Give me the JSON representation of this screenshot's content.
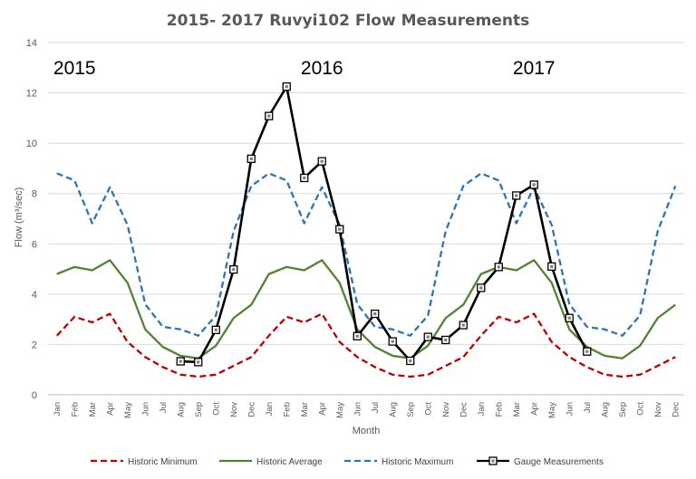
{
  "chart_data": {
    "type": "line",
    "title": "2015- 2017 Ruvyi102 Flow Measurements",
    "xlabel": "Month",
    "ylabel": "Flow (m³/sec)",
    "ylim": [
      0,
      14
    ],
    "yticks": [
      "0",
      "2",
      "4",
      "6",
      "8",
      "10",
      "12",
      "14"
    ],
    "grid": "horizontal",
    "legend_position": "bottom",
    "categories": [
      "Jan",
      "Feb",
      "Mar",
      "Apr",
      "May",
      "Jun",
      "Jul",
      "Aug",
      "Sep",
      "Oct",
      "Nov",
      "Dec",
      "Jan",
      "Feb",
      "Mar",
      "Apr",
      "May",
      "Jun",
      "Jul",
      "Aug",
      "Sep",
      "Oct",
      "Nov",
      "Dec",
      "Jan",
      "Feb",
      "Mar",
      "Apr",
      "May",
      "Jun",
      "Jul",
      "Aug",
      "Sep",
      "Oct",
      "Nov",
      "Dec"
    ],
    "year_labels": [
      {
        "text": "2015",
        "category_index": 1
      },
      {
        "text": "2016",
        "category_index": 15
      },
      {
        "text": "2017",
        "category_index": 27
      }
    ],
    "series": [
      {
        "name": "Historic Minimum",
        "color": "#C00000",
        "dash": "dash",
        "values": [
          2.35,
          3.1,
          2.88,
          3.22,
          2.1,
          1.5,
          1.1,
          0.8,
          0.72,
          0.8,
          1.15,
          1.5,
          2.35,
          3.1,
          2.88,
          3.22,
          2.1,
          1.5,
          1.1,
          0.8,
          0.72,
          0.8,
          1.15,
          1.5,
          2.35,
          3.1,
          2.88,
          3.22,
          2.1,
          1.5,
          1.1,
          0.8,
          0.72,
          0.8,
          1.15,
          1.5
        ]
      },
      {
        "name": "Historic Average",
        "color": "#548235",
        "dash": "solid",
        "values": [
          4.8,
          5.08,
          4.95,
          5.35,
          4.45,
          2.6,
          1.9,
          1.55,
          1.45,
          1.95,
          3.05,
          3.58,
          4.8,
          5.08,
          4.95,
          5.35,
          4.45,
          2.6,
          1.9,
          1.55,
          1.45,
          1.95,
          3.05,
          3.58,
          4.8,
          5.08,
          4.95,
          5.35,
          4.45,
          2.6,
          1.9,
          1.55,
          1.45,
          1.95,
          3.05,
          3.58
        ]
      },
      {
        "name": "Historic Maximum",
        "color": "#2E75B6",
        "dash": "dash",
        "values": [
          8.8,
          8.52,
          6.82,
          8.25,
          6.75,
          3.6,
          2.7,
          2.6,
          2.35,
          3.15,
          6.5,
          8.3,
          8.8,
          8.52,
          6.82,
          8.25,
          6.75,
          3.6,
          2.7,
          2.6,
          2.35,
          3.15,
          6.5,
          8.3,
          8.8,
          8.52,
          6.82,
          8.25,
          6.75,
          3.6,
          2.7,
          2.6,
          2.35,
          3.15,
          6.5,
          8.3
        ]
      },
      {
        "name": "Gauge Measurements",
        "color": "#000000",
        "dash": "solid",
        "marker": "square",
        "values": [
          null,
          null,
          null,
          null,
          null,
          null,
          null,
          1.33,
          1.3,
          2.58,
          4.98,
          9.38,
          11.08,
          12.25,
          8.62,
          9.28,
          6.58,
          2.33,
          3.22,
          2.12,
          1.35,
          2.3,
          2.18,
          2.77,
          4.25,
          5.08,
          7.92,
          8.35,
          5.1,
          3.05,
          1.72,
          null,
          null,
          null,
          null,
          null
        ]
      }
    ]
  }
}
